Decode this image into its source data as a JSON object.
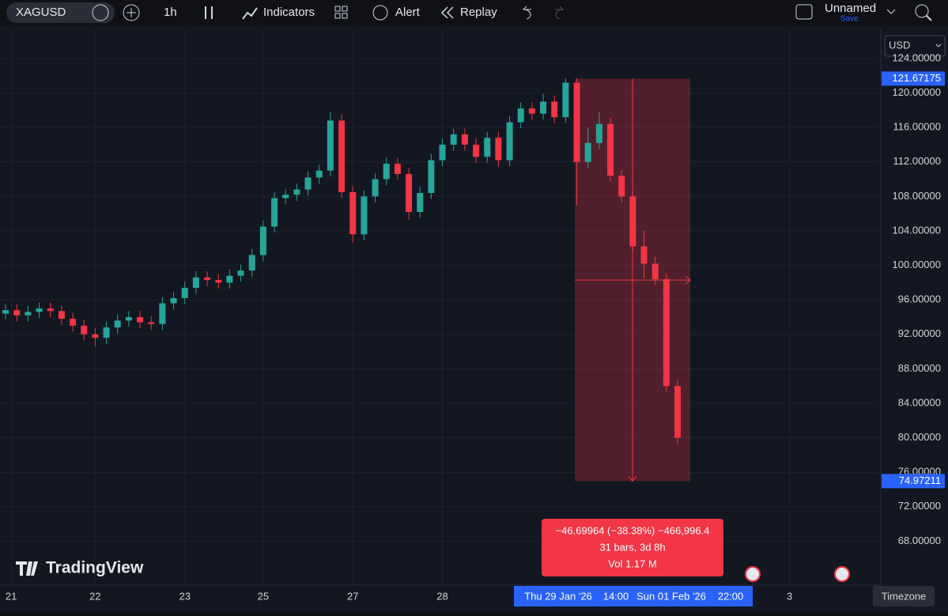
{
  "toolbar": {
    "symbol": "XAGUSD",
    "interval": "1h",
    "indicators": "Indicators",
    "alert": "Alert",
    "replay": "Replay",
    "layout_name": "Unnamed",
    "save": "Save"
  },
  "currency": "USD",
  "brand": "TradingView",
  "chart_data": {
    "type": "candlestick",
    "up_color": "#26a69a",
    "down_color": "#f23645",
    "grid": true,
    "open": [
      94.4,
      94.8,
      94.2,
      94.6,
      95.0,
      94.7,
      93.8,
      93.0,
      92.0,
      91.6,
      92.8,
      93.6,
      94.0,
      93.4,
      93.2,
      95.6,
      96.2,
      97.4,
      98.6,
      98.3,
      98.0,
      98.8,
      99.4,
      101.2,
      104.5,
      107.8,
      108.2,
      108.8,
      110.2,
      111.0,
      116.8,
      108.5,
      103.6,
      108.0,
      110.0,
      111.8,
      110.6,
      106.2,
      108.4,
      112.2,
      114.0,
      115.2,
      114.0,
      112.6,
      114.8,
      112.2,
      116.6,
      118.2,
      117.6,
      119.0,
      117.2,
      121.2,
      112.0,
      114.2,
      116.4,
      110.4,
      108.0,
      102.2,
      100.2,
      98.4,
      86.0
    ],
    "high": [
      95.5,
      95.5,
      95.3,
      95.7,
      95.7,
      95.4,
      94.5,
      93.7,
      92.7,
      93.5,
      94.3,
      94.7,
      94.7,
      94.1,
      96.3,
      96.9,
      98.1,
      99.3,
      99.3,
      99.0,
      99.5,
      100.1,
      101.9,
      105.2,
      108.5,
      108.9,
      109.5,
      110.9,
      111.7,
      117.8,
      117.5,
      109.2,
      108.7,
      110.7,
      112.5,
      112.5,
      111.3,
      109.1,
      112.9,
      114.7,
      115.9,
      115.9,
      114.7,
      115.5,
      115.5,
      117.3,
      118.9,
      118.9,
      119.9,
      119.7,
      121.7,
      121.7,
      116.0,
      117.8,
      117.1,
      111.1,
      108.7,
      104.0,
      101.0,
      99.1,
      86.7
    ],
    "low": [
      93.7,
      93.5,
      93.5,
      93.9,
      94.0,
      93.1,
      92.3,
      91.3,
      90.6,
      90.9,
      92.1,
      92.9,
      92.7,
      92.5,
      92.5,
      94.9,
      95.5,
      96.7,
      97.6,
      97.3,
      97.3,
      98.1,
      98.7,
      100.5,
      103.8,
      107.1,
      107.5,
      108.1,
      109.5,
      110.3,
      107.8,
      102.6,
      102.9,
      107.3,
      109.3,
      109.9,
      105.3,
      105.5,
      107.7,
      111.5,
      113.3,
      113.3,
      111.9,
      111.9,
      111.5,
      111.5,
      115.9,
      116.9,
      116.9,
      116.5,
      116.5,
      107.0,
      111.3,
      113.5,
      109.7,
      107.3,
      101.5,
      98.5,
      97.7,
      85.3,
      79.3
    ],
    "close": [
      94.8,
      94.2,
      94.6,
      95.0,
      94.7,
      93.8,
      93.0,
      92.0,
      91.6,
      92.8,
      93.6,
      94.0,
      93.4,
      93.2,
      95.6,
      96.2,
      97.4,
      98.6,
      98.3,
      98.0,
      98.8,
      99.4,
      101.2,
      104.5,
      107.8,
      108.2,
      108.8,
      110.2,
      111.0,
      116.8,
      108.5,
      103.6,
      108.0,
      110.0,
      111.8,
      110.6,
      106.2,
      108.4,
      112.2,
      114.0,
      115.2,
      114.0,
      112.6,
      114.8,
      112.2,
      116.6,
      118.2,
      117.6,
      119.0,
      117.2,
      121.2,
      112.0,
      114.2,
      116.4,
      110.4,
      108.0,
      102.2,
      100.2,
      98.4,
      86.0,
      80.0
    ],
    "ylim": [
      62.9,
      127.3
    ],
    "yticks": [
      {
        "value": 124,
        "label": "124.00000"
      },
      {
        "value": 120,
        "label": "120.00000"
      },
      {
        "value": 116,
        "label": "116.00000"
      },
      {
        "value": 112,
        "label": "112.00000"
      },
      {
        "value": 108,
        "label": "108.00000"
      },
      {
        "value": 104,
        "label": "104.00000"
      },
      {
        "value": 100,
        "label": "100.00000"
      },
      {
        "value": 96,
        "label": "96.00000"
      },
      {
        "value": 92,
        "label": "92.00000"
      },
      {
        "value": 88,
        "label": "88.00000"
      },
      {
        "value": 84,
        "label": "84.00000"
      },
      {
        "value": 80,
        "label": "80.00000"
      },
      {
        "value": 76,
        "label": "76.00000"
      },
      {
        "value": 72,
        "label": "72.00000"
      },
      {
        "value": 68,
        "label": "68.00000"
      }
    ],
    "xlim": [
      -0.5,
      78
    ],
    "xticks": [
      {
        "value": 0.5,
        "label": "21"
      },
      {
        "value": 8,
        "label": "22"
      },
      {
        "value": 16,
        "label": "23"
      },
      {
        "value": 23,
        "label": "25"
      },
      {
        "value": 31,
        "label": "27"
      },
      {
        "value": 39,
        "label": "28"
      },
      {
        "value": 70,
        "label": "3"
      }
    ]
  },
  "measure": {
    "top": {
      "value": 121.67175,
      "label": "121.67175"
    },
    "bottom": {
      "value": 74.97211,
      "label": "74.97211"
    },
    "change": "−46.69964 (−38.38%) −466,996.4",
    "bars": "31 bars, 3d 8h",
    "volume": "Vol 1.17 M",
    "range": [
      "Thu 29 Jan '26",
      "14:00",
      "Sun 01 Feb '26",
      "22:00"
    ]
  },
  "timezone": "Timezone"
}
